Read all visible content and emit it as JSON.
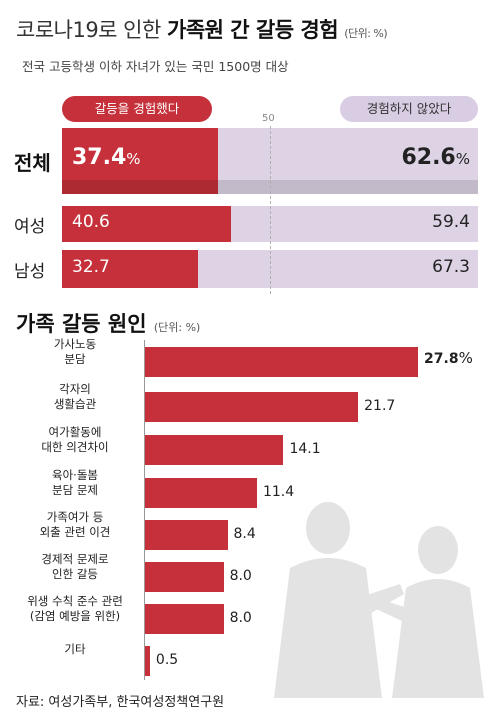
{
  "title": {
    "prefix": "코로나19로 인한",
    "bold": "가족원 간 갈등 경험",
    "unit": "(단위: %)"
  },
  "subtitle": "전국 고등학생 이하 자녀가 있는 국민 1500명 대상",
  "legend": {
    "yes": "갈등을 경험했다",
    "no": "경험하지 않았다"
  },
  "reference_line_label": "50",
  "section2": {
    "title": "가족 갈등 원인",
    "unit": "(단위: %)"
  },
  "source": "자료: 여성가족부, 한국여성정책연구원",
  "chart_data": [
    {
      "type": "bar",
      "orientation": "horizontal",
      "stacked": true,
      "title": "코로나19로 인한 가족원 간 갈등 경험",
      "unit": "%",
      "categories": [
        "전체",
        "여성",
        "남성"
      ],
      "series": [
        {
          "name": "갈등을 경험했다",
          "values": [
            37.4,
            40.6,
            32.7
          ],
          "color": "#c5303a"
        },
        {
          "name": "경험하지 않았다",
          "values": [
            62.6,
            59.4,
            67.3
          ],
          "color": "#ddd3e5"
        }
      ],
      "labels": {
        "yes": [
          "37.4",
          "40.6",
          "32.7"
        ],
        "no": [
          "62.6",
          "59.4",
          "67.3"
        ],
        "pct": "%"
      },
      "reference_line": 50,
      "xlim": [
        0,
        100
      ]
    },
    {
      "type": "bar",
      "orientation": "horizontal",
      "title": "가족 갈등 원인",
      "unit": "%",
      "categories": [
        [
          "가사노동",
          "분담"
        ],
        [
          "각자의",
          "생활습관"
        ],
        [
          "여가활동에",
          "대한 의견차이"
        ],
        [
          "육아·돌봄",
          "분담 문제"
        ],
        [
          "가족여가 등",
          "외출 관련 이견"
        ],
        [
          "경제적 문제로",
          "인한 갈등"
        ],
        [
          "위생 수칙 준수 관련",
          "(감염 예방을 위한)"
        ],
        [
          "기타"
        ]
      ],
      "values": [
        27.8,
        21.7,
        14.1,
        11.4,
        8.4,
        8.0,
        8.0,
        0.5
      ],
      "value_labels": [
        "27.8",
        "21.7",
        "14.1",
        "11.4",
        "8.4",
        "8.0",
        "8.0",
        "0.5"
      ],
      "pct": "%",
      "color": "#c5303a",
      "xlim": [
        0,
        28
      ]
    }
  ]
}
